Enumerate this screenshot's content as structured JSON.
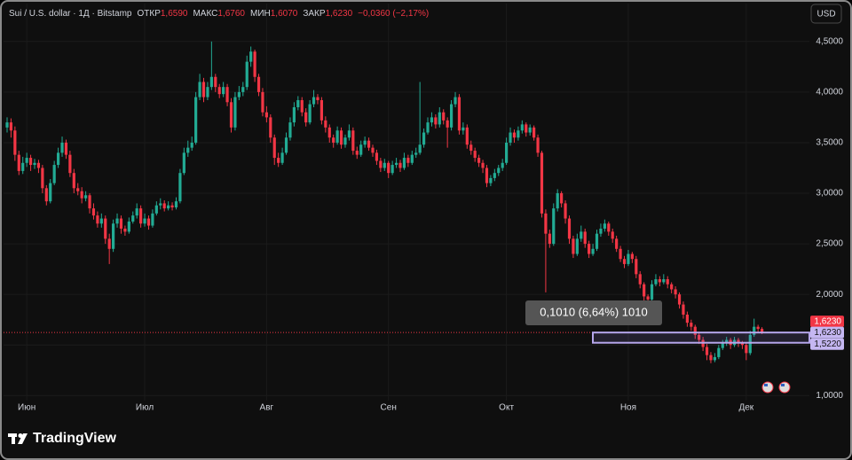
{
  "chart_data": {
    "type": "candlestick",
    "title": "Sui / U.S. dollar · 1Д · Bitstamp",
    "ohlc_header": [
      {
        "name": "ОТКР",
        "label": "1,6590"
      },
      {
        "name": "МАКС",
        "label": "1,6760"
      },
      {
        "name": "МИН",
        "label": "1,6070"
      },
      {
        "name": "ЗАКР",
        "label": "1,6230"
      }
    ],
    "change": "−0,0360 (−2,17%)",
    "currency": "USD",
    "logo": "TradingView",
    "up_color": "#22ab94",
    "down_color": "#f23645",
    "grid": true,
    "ylim": [
      0.95,
      4.84
    ],
    "yticks": [
      {
        "value": 1.0,
        "label": "1,0000"
      },
      {
        "value": 1.5,
        "label": "1,5000"
      },
      {
        "value": 2.0,
        "label": "2,0000"
      },
      {
        "value": 2.5,
        "label": "2,5000"
      },
      {
        "value": 3.0,
        "label": "3,0000"
      },
      {
        "value": 3.5,
        "label": "3,5000"
      },
      {
        "value": 4.0,
        "label": "4,0000"
      },
      {
        "value": 4.5,
        "label": "4,5000"
      }
    ],
    "xticks": [
      {
        "value": 5,
        "label": "Июн"
      },
      {
        "value": 35,
        "label": "Июл"
      },
      {
        "value": 66,
        "label": "Авг"
      },
      {
        "value": 97,
        "label": "Сен"
      },
      {
        "value": 127,
        "label": "Окт"
      },
      {
        "value": 158,
        "label": "Ноя"
      },
      {
        "value": 188,
        "label": "Дек"
      }
    ],
    "last_price": {
      "value": 1.623,
      "label": "1,6230"
    },
    "measure": {
      "text": "0,1010 (6,64%) 1010",
      "to": {
        "value": 1.623,
        "label": "1,6230"
      },
      "from": {
        "value": 1.522,
        "label": "1,5220"
      }
    },
    "ohlc": [
      [
        3.65,
        3.75,
        3.6,
        3.7
      ],
      [
        3.7,
        3.74,
        3.55,
        3.62
      ],
      [
        3.62,
        3.66,
        3.32,
        3.38
      ],
      [
        3.38,
        3.42,
        3.18,
        3.22
      ],
      [
        3.22,
        3.36,
        3.19,
        3.3
      ],
      [
        3.3,
        3.4,
        3.26,
        3.35
      ],
      [
        3.35,
        3.38,
        3.22,
        3.28
      ],
      [
        3.28,
        3.34,
        3.24,
        3.3
      ],
      [
        3.3,
        3.33,
        3.2,
        3.25
      ],
      [
        3.25,
        3.28,
        3.0,
        3.05
      ],
      [
        3.05,
        3.08,
        2.88,
        2.92
      ],
      [
        2.92,
        3.14,
        2.9,
        3.1
      ],
      [
        3.1,
        3.32,
        3.08,
        3.28
      ],
      [
        3.28,
        3.45,
        3.25,
        3.4
      ],
      [
        3.4,
        3.56,
        3.36,
        3.5
      ],
      [
        3.5,
        3.53,
        3.34,
        3.38
      ],
      [
        3.38,
        3.42,
        3.16,
        3.2
      ],
      [
        3.2,
        3.24,
        3.0,
        3.05
      ],
      [
        3.05,
        3.1,
        2.98,
        3.02
      ],
      [
        3.02,
        3.06,
        2.9,
        2.95
      ],
      [
        2.95,
        3.02,
        2.92,
        2.98
      ],
      [
        2.98,
        3.0,
        2.8,
        2.85
      ],
      [
        2.85,
        2.9,
        2.74,
        2.78
      ],
      [
        2.78,
        2.82,
        2.66,
        2.7
      ],
      [
        2.7,
        2.8,
        2.66,
        2.75
      ],
      [
        2.75,
        2.78,
        2.5,
        2.55
      ],
      [
        2.55,
        2.6,
        2.3,
        2.45
      ],
      [
        2.45,
        2.74,
        2.42,
        2.7
      ],
      [
        2.7,
        2.8,
        2.66,
        2.75
      ],
      [
        2.75,
        2.78,
        2.6,
        2.65
      ],
      [
        2.65,
        2.68,
        2.58,
        2.62
      ],
      [
        2.62,
        2.76,
        2.6,
        2.72
      ],
      [
        2.72,
        2.82,
        2.7,
        2.78
      ],
      [
        2.78,
        2.9,
        2.75,
        2.85
      ],
      [
        2.85,
        2.88,
        2.66,
        2.7
      ],
      [
        2.7,
        2.8,
        2.67,
        2.75
      ],
      [
        2.75,
        2.78,
        2.64,
        2.68
      ],
      [
        2.68,
        2.84,
        2.66,
        2.8
      ],
      [
        2.8,
        2.92,
        2.78,
        2.88
      ],
      [
        2.88,
        2.95,
        2.84,
        2.9
      ],
      [
        2.9,
        2.93,
        2.82,
        2.85
      ],
      [
        2.85,
        2.92,
        2.83,
        2.88
      ],
      [
        2.88,
        2.91,
        2.83,
        2.86
      ],
      [
        2.86,
        2.96,
        2.84,
        2.92
      ],
      [
        2.92,
        3.24,
        2.9,
        3.2
      ],
      [
        3.2,
        3.45,
        3.18,
        3.4
      ],
      [
        3.4,
        3.52,
        3.36,
        3.45
      ],
      [
        3.45,
        3.56,
        3.42,
        3.5
      ],
      [
        3.5,
        4.0,
        3.48,
        3.95
      ],
      [
        3.95,
        4.18,
        3.92,
        4.1
      ],
      [
        4.1,
        4.14,
        3.9,
        3.95
      ],
      [
        3.95,
        4.1,
        3.92,
        4.05
      ],
      [
        4.05,
        4.5,
        4.02,
        4.15
      ],
      [
        4.15,
        4.18,
        4.0,
        4.05
      ],
      [
        4.05,
        4.08,
        3.94,
        3.98
      ],
      [
        3.98,
        4.1,
        3.95,
        4.05
      ],
      [
        4.05,
        4.08,
        3.86,
        3.9
      ],
      [
        3.9,
        3.94,
        3.6,
        3.65
      ],
      [
        3.65,
        4.0,
        3.62,
        3.95
      ],
      [
        3.95,
        4.06,
        3.92,
        4.0
      ],
      [
        4.0,
        4.1,
        3.96,
        4.05
      ],
      [
        4.05,
        4.36,
        4.02,
        4.3
      ],
      [
        4.3,
        4.45,
        4.25,
        4.4
      ],
      [
        4.4,
        4.42,
        4.1,
        4.15
      ],
      [
        4.15,
        4.18,
        3.96,
        4.0
      ],
      [
        4.0,
        4.04,
        3.76,
        3.8
      ],
      [
        3.8,
        3.86,
        3.7,
        3.75
      ],
      [
        3.75,
        3.78,
        3.5,
        3.55
      ],
      [
        3.55,
        3.58,
        3.28,
        3.35
      ],
      [
        3.35,
        3.4,
        3.26,
        3.3
      ],
      [
        3.3,
        3.45,
        3.28,
        3.4
      ],
      [
        3.4,
        3.6,
        3.38,
        3.55
      ],
      [
        3.55,
        3.75,
        3.52,
        3.7
      ],
      [
        3.7,
        3.9,
        3.66,
        3.85
      ],
      [
        3.85,
        3.96,
        3.82,
        3.92
      ],
      [
        3.92,
        3.95,
        3.76,
        3.8
      ],
      [
        3.8,
        3.84,
        3.66,
        3.7
      ],
      [
        3.7,
        3.92,
        3.68,
        3.88
      ],
      [
        3.88,
        4.02,
        3.85,
        3.95
      ],
      [
        3.95,
        3.98,
        3.88,
        3.92
      ],
      [
        3.92,
        3.95,
        3.68,
        3.72
      ],
      [
        3.72,
        3.76,
        3.6,
        3.65
      ],
      [
        3.65,
        3.68,
        3.5,
        3.55
      ],
      [
        3.55,
        3.58,
        3.45,
        3.5
      ],
      [
        3.5,
        3.66,
        3.48,
        3.62
      ],
      [
        3.62,
        3.65,
        3.44,
        3.48
      ],
      [
        3.48,
        3.58,
        3.45,
        3.55
      ],
      [
        3.55,
        3.68,
        3.52,
        3.62
      ],
      [
        3.62,
        3.65,
        3.38,
        3.42
      ],
      [
        3.42,
        3.46,
        3.34,
        3.38
      ],
      [
        3.38,
        3.52,
        3.36,
        3.48
      ],
      [
        3.48,
        3.56,
        3.45,
        3.52
      ],
      [
        3.52,
        3.55,
        3.42,
        3.45
      ],
      [
        3.45,
        3.48,
        3.36,
        3.4
      ],
      [
        3.4,
        3.43,
        3.28,
        3.32
      ],
      [
        3.32,
        3.35,
        3.21,
        3.25
      ],
      [
        3.25,
        3.34,
        3.22,
        3.3
      ],
      [
        3.3,
        3.32,
        3.15,
        3.2
      ],
      [
        3.2,
        3.32,
        3.18,
        3.28
      ],
      [
        3.28,
        3.35,
        3.25,
        3.3
      ],
      [
        3.3,
        3.33,
        3.21,
        3.25
      ],
      [
        3.25,
        3.4,
        3.23,
        3.35
      ],
      [
        3.35,
        3.38,
        3.26,
        3.3
      ],
      [
        3.3,
        3.42,
        3.28,
        3.38
      ],
      [
        3.38,
        3.45,
        3.35,
        3.4
      ],
      [
        3.4,
        4.1,
        3.38,
        3.48
      ],
      [
        3.48,
        3.64,
        3.45,
        3.6
      ],
      [
        3.6,
        3.75,
        3.58,
        3.7
      ],
      [
        3.7,
        3.8,
        3.66,
        3.75
      ],
      [
        3.75,
        3.78,
        3.64,
        3.68
      ],
      [
        3.68,
        3.85,
        3.65,
        3.8
      ],
      [
        3.8,
        3.83,
        3.68,
        3.72
      ],
      [
        3.72,
        3.75,
        3.45,
        3.65
      ],
      [
        3.65,
        3.92,
        3.62,
        3.88
      ],
      [
        3.88,
        4.0,
        3.85,
        3.95
      ],
      [
        3.95,
        3.98,
        3.58,
        3.62
      ],
      [
        3.62,
        3.7,
        3.58,
        3.65
      ],
      [
        3.65,
        3.68,
        3.44,
        3.48
      ],
      [
        3.48,
        3.52,
        3.38,
        3.42
      ],
      [
        3.42,
        3.45,
        3.31,
        3.35
      ],
      [
        3.35,
        3.38,
        3.26,
        3.3
      ],
      [
        3.3,
        3.33,
        3.2,
        3.25
      ],
      [
        3.25,
        3.28,
        3.06,
        3.1
      ],
      [
        3.1,
        3.18,
        3.07,
        3.15
      ],
      [
        3.15,
        3.24,
        3.12,
        3.2
      ],
      [
        3.2,
        3.28,
        3.17,
        3.25
      ],
      [
        3.25,
        3.34,
        3.22,
        3.3
      ],
      [
        3.3,
        3.55,
        3.28,
        3.5
      ],
      [
        3.5,
        3.65,
        3.47,
        3.6
      ],
      [
        3.6,
        3.63,
        3.5,
        3.55
      ],
      [
        3.55,
        3.66,
        3.52,
        3.62
      ],
      [
        3.62,
        3.72,
        3.59,
        3.68
      ],
      [
        3.68,
        3.7,
        3.56,
        3.6
      ],
      [
        3.6,
        3.68,
        3.57,
        3.65
      ],
      [
        3.65,
        3.67,
        3.52,
        3.55
      ],
      [
        3.55,
        3.58,
        3.36,
        3.4
      ],
      [
        3.4,
        3.42,
        2.76,
        2.8
      ],
      [
        2.8,
        2.84,
        2.02,
        2.6
      ],
      [
        2.6,
        2.64,
        2.46,
        2.5
      ],
      [
        2.5,
        2.9,
        2.48,
        2.85
      ],
      [
        2.85,
        3.04,
        2.82,
        3.0
      ],
      [
        3.0,
        3.02,
        2.86,
        2.9
      ],
      [
        2.9,
        2.93,
        2.7,
        2.75
      ],
      [
        2.75,
        2.78,
        2.5,
        2.55
      ],
      [
        2.55,
        2.58,
        2.36,
        2.4
      ],
      [
        2.4,
        2.6,
        2.38,
        2.55
      ],
      [
        2.55,
        2.68,
        2.52,
        2.62
      ],
      [
        2.62,
        2.65,
        2.46,
        2.5
      ],
      [
        2.5,
        2.53,
        2.36,
        2.4
      ],
      [
        2.4,
        2.5,
        2.38,
        2.45
      ],
      [
        2.45,
        2.64,
        2.43,
        2.6
      ],
      [
        2.6,
        2.7,
        2.57,
        2.65
      ],
      [
        2.65,
        2.74,
        2.62,
        2.7
      ],
      [
        2.7,
        2.72,
        2.58,
        2.62
      ],
      [
        2.62,
        2.65,
        2.51,
        2.55
      ],
      [
        2.55,
        2.58,
        2.42,
        2.45
      ],
      [
        2.45,
        2.48,
        2.32,
        2.35
      ],
      [
        2.35,
        2.38,
        2.26,
        2.3
      ],
      [
        2.3,
        2.44,
        2.28,
        2.4
      ],
      [
        2.4,
        2.42,
        2.31,
        2.35
      ],
      [
        2.35,
        2.38,
        2.16,
        2.2
      ],
      [
        2.2,
        2.23,
        2.06,
        2.1
      ],
      [
        2.1,
        2.12,
        1.94,
        1.98
      ],
      [
        1.98,
        2.0,
        1.9,
        1.95
      ],
      [
        1.95,
        2.14,
        1.93,
        2.1
      ],
      [
        2.1,
        2.2,
        2.08,
        2.15
      ],
      [
        2.15,
        2.18,
        2.08,
        2.12
      ],
      [
        2.12,
        2.2,
        2.1,
        2.15
      ],
      [
        2.15,
        2.18,
        2.06,
        2.1
      ],
      [
        2.1,
        2.12,
        2.01,
        2.05
      ],
      [
        2.05,
        2.08,
        1.96,
        2.0
      ],
      [
        2.0,
        2.02,
        1.86,
        1.9
      ],
      [
        1.9,
        1.93,
        1.76,
        1.8
      ],
      [
        1.8,
        1.83,
        1.68,
        1.72
      ],
      [
        1.72,
        1.75,
        1.64,
        1.68
      ],
      [
        1.68,
        1.7,
        1.56,
        1.6
      ],
      [
        1.6,
        1.63,
        1.51,
        1.55
      ],
      [
        1.55,
        1.58,
        1.44,
        1.48
      ],
      [
        1.48,
        1.51,
        1.35,
        1.4
      ],
      [
        1.4,
        1.43,
        1.32,
        1.35
      ],
      [
        1.35,
        1.42,
        1.33,
        1.38
      ],
      [
        1.38,
        1.5,
        1.36,
        1.47
      ],
      [
        1.47,
        1.55,
        1.45,
        1.52
      ],
      [
        1.52,
        1.58,
        1.49,
        1.55
      ],
      [
        1.55,
        1.57,
        1.46,
        1.5
      ],
      [
        1.5,
        1.58,
        1.48,
        1.55
      ],
      [
        1.55,
        1.57,
        1.48,
        1.52
      ],
      [
        1.52,
        1.54,
        1.46,
        1.5
      ],
      [
        1.5,
        1.52,
        1.35,
        1.42
      ],
      [
        1.42,
        1.64,
        1.4,
        1.6
      ],
      [
        1.6,
        1.76,
        1.58,
        1.68
      ],
      [
        1.68,
        1.7,
        1.62,
        1.659
      ],
      [
        1.659,
        1.676,
        1.607,
        1.623
      ]
    ]
  }
}
